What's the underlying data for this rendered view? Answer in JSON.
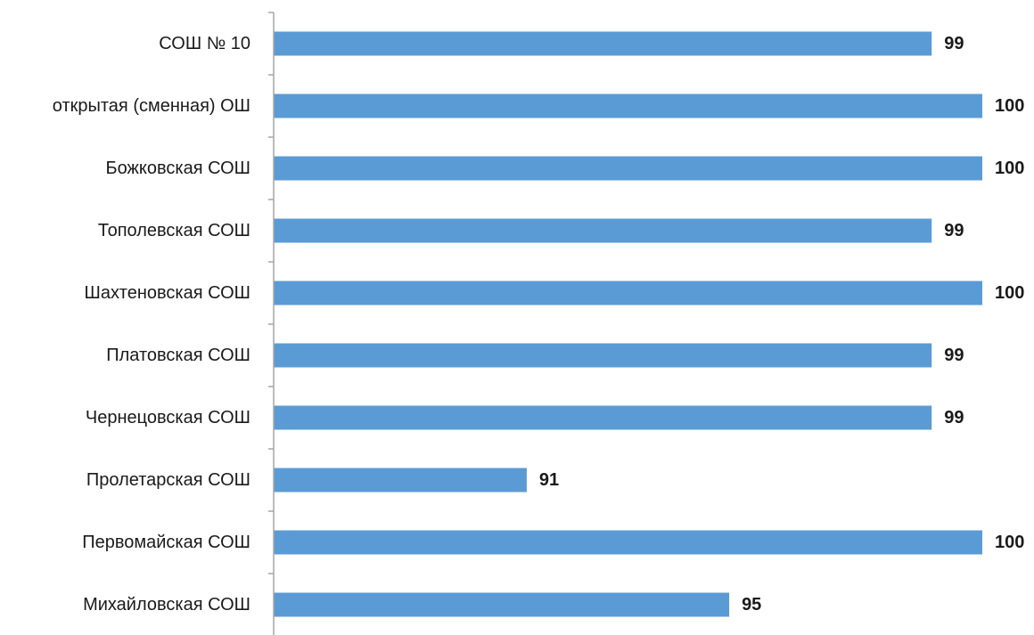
{
  "chart_data": {
    "type": "bar",
    "orientation": "horizontal",
    "categories": [
      "СОШ № 10",
      "открытая (сменная) ОШ",
      "Божковская СОШ",
      "Тополевская СОШ",
      "Шахтеновская СОШ",
      "Платовская СОШ",
      "Чернецовская СОШ",
      "Пролетарская СОШ",
      "Первомайская СОШ",
      "Михайловская СОШ"
    ],
    "values": [
      99,
      100,
      100,
      99,
      100,
      99,
      99,
      91,
      100,
      95
    ],
    "data_labels": [
      "99",
      "100",
      "100",
      "99",
      "100",
      "99",
      "99",
      "91",
      "100",
      "95"
    ],
    "xlim": [
      86,
      100
    ],
    "grid": false,
    "legend": "none",
    "bar_color": "#5b9bd5",
    "title": "",
    "xlabel": "",
    "ylabel": ""
  }
}
